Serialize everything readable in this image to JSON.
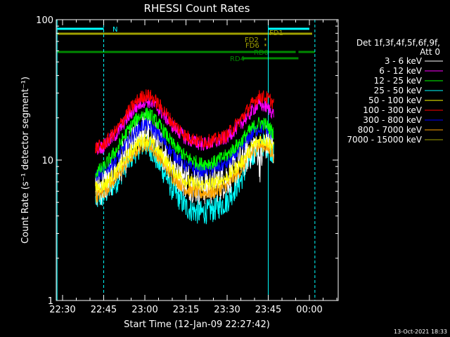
{
  "chart_data": {
    "type": "line",
    "title": "RHESSI Count Rates",
    "xlabel": "Start Time (12-Jan-09 22:27:42)",
    "ylabel": "Count Rate (s⁻¹ detector segment⁻¹)",
    "x_unit": "minutes of day (UT)",
    "xlim": [
      1347.7,
      1450.5
    ],
    "ylim": [
      1,
      100
    ],
    "yscale": "log",
    "x_ticks": [
      {
        "value": 1350,
        "label": "22:30"
      },
      {
        "value": 1365,
        "label": "22:45"
      },
      {
        "value": 1380,
        "label": "23:00"
      },
      {
        "value": 1395,
        "label": "23:15"
      },
      {
        "value": 1410,
        "label": "23:30"
      },
      {
        "value": 1425,
        "label": "23:45"
      },
      {
        "value": 1440,
        "label": "00:00"
      }
    ],
    "y_ticks": [
      {
        "value": 1,
        "label": "1"
      },
      {
        "value": 10,
        "label": "10"
      },
      {
        "value": 100,
        "label": "100"
      }
    ],
    "legend_header": [
      "Det 1f,3f,4f,5f,6f,9f,",
      "Att 0"
    ],
    "legend_position": "right",
    "grid": false,
    "series": [
      {
        "name": "3 - 6 keV",
        "color": "#ffffff",
        "noise": 0.14,
        "points": [
          [
            1362,
            6.2
          ],
          [
            1365,
            6.6
          ],
          [
            1370,
            8.5
          ],
          [
            1375,
            12.5
          ],
          [
            1378,
            15.5
          ],
          [
            1380,
            16.5
          ],
          [
            1382,
            16
          ],
          [
            1385,
            13
          ],
          [
            1390,
            9
          ],
          [
            1395,
            7.2
          ],
          [
            1400,
            6.5
          ],
          [
            1405,
            6.6
          ],
          [
            1410,
            7.5
          ],
          [
            1415,
            9.5
          ],
          [
            1418,
            11.5
          ],
          [
            1420,
            12.8
          ],
          [
            1421,
            12.5
          ],
          [
            1422,
            9.5
          ],
          [
            1424,
            13.5
          ],
          [
            1426,
            13.5
          ],
          [
            1427,
            12
          ]
        ]
      },
      {
        "name": "6 - 12 keV",
        "color": "#ff00ff",
        "noise": 0.05,
        "points": [
          [
            1362,
            12
          ],
          [
            1365,
            12.5
          ],
          [
            1370,
            15.5
          ],
          [
            1375,
            21.5
          ],
          [
            1378,
            25
          ],
          [
            1380,
            26.5
          ],
          [
            1382,
            26
          ],
          [
            1385,
            23
          ],
          [
            1390,
            17.5
          ],
          [
            1395,
            14.2
          ],
          [
            1400,
            13
          ],
          [
            1405,
            13.2
          ],
          [
            1410,
            14.5
          ],
          [
            1415,
            18
          ],
          [
            1418,
            21
          ],
          [
            1420,
            23.5
          ],
          [
            1422,
            25
          ],
          [
            1424,
            24
          ],
          [
            1426,
            22.5
          ],
          [
            1427,
            21
          ]
        ]
      },
      {
        "name": "12 - 25 keV",
        "color": "#00ff00",
        "noise": 0.05,
        "points": [
          [
            1362,
            8.2
          ],
          [
            1365,
            8.8
          ],
          [
            1370,
            12
          ],
          [
            1375,
            17.5
          ],
          [
            1378,
            20.5
          ],
          [
            1380,
            21.5
          ],
          [
            1382,
            21
          ],
          [
            1385,
            18
          ],
          [
            1390,
            13
          ],
          [
            1395,
            10.5
          ],
          [
            1400,
            9.4
          ],
          [
            1405,
            9.6
          ],
          [
            1410,
            10.8
          ],
          [
            1415,
            13.5
          ],
          [
            1418,
            16
          ],
          [
            1420,
            17.5
          ],
          [
            1422,
            18.5
          ],
          [
            1424,
            18
          ],
          [
            1426,
            16.5
          ],
          [
            1427,
            15.5
          ]
        ]
      },
      {
        "name": "25 - 50 keV",
        "color": "#00ffff",
        "noise": 0.09,
        "points": [
          [
            1362,
            5.2
          ],
          [
            1365,
            5.6
          ],
          [
            1370,
            7.2
          ],
          [
            1375,
            10.5
          ],
          [
            1378,
            12.5
          ],
          [
            1380,
            13
          ],
          [
            1382,
            12.2
          ],
          [
            1385,
            9.5
          ],
          [
            1390,
            6.2
          ],
          [
            1395,
            4.6
          ],
          [
            1400,
            4.2
          ],
          [
            1405,
            4.4
          ],
          [
            1410,
            5.1
          ],
          [
            1415,
            7.2
          ],
          [
            1418,
            9.6
          ],
          [
            1420,
            11.5
          ],
          [
            1422,
            12.8
          ],
          [
            1424,
            13
          ],
          [
            1426,
            12
          ],
          [
            1427,
            11
          ]
        ]
      },
      {
        "name": "50 - 100 keV",
        "color": "#ffff00",
        "noise": 0.05,
        "points": [
          [
            1362,
            6.3
          ],
          [
            1365,
            6.6
          ],
          [
            1370,
            8.4
          ],
          [
            1375,
            11.5
          ],
          [
            1378,
            13.5
          ],
          [
            1380,
            14
          ],
          [
            1382,
            13.5
          ],
          [
            1385,
            11.5
          ],
          [
            1390,
            8.5
          ],
          [
            1395,
            7.1
          ],
          [
            1400,
            6.6
          ],
          [
            1405,
            6.8
          ],
          [
            1410,
            7.5
          ],
          [
            1415,
            9.5
          ],
          [
            1418,
            11.5
          ],
          [
            1420,
            13
          ],
          [
            1422,
            14
          ],
          [
            1424,
            13.8
          ],
          [
            1426,
            13
          ],
          [
            1427,
            12
          ]
        ]
      },
      {
        "name": "100 - 300 keV",
        "color": "#ff0000",
        "noise": 0.05,
        "points": [
          [
            1362,
            12.2
          ],
          [
            1365,
            12.8
          ],
          [
            1370,
            16.5
          ],
          [
            1375,
            23.5
          ],
          [
            1378,
            27.5
          ],
          [
            1380,
            29
          ],
          [
            1382,
            28.5
          ],
          [
            1385,
            25
          ],
          [
            1390,
            18.5
          ],
          [
            1395,
            14.8
          ],
          [
            1400,
            13.5
          ],
          [
            1405,
            13.8
          ],
          [
            1410,
            15
          ],
          [
            1415,
            19.5
          ],
          [
            1418,
            23.5
          ],
          [
            1420,
            26.5
          ],
          [
            1422,
            28.5
          ],
          [
            1424,
            28
          ],
          [
            1426,
            26.5
          ],
          [
            1427,
            25
          ]
        ]
      },
      {
        "name": "300 - 800 keV",
        "color": "#0000ff",
        "noise": 0.05,
        "points": [
          [
            1362,
            7.8
          ],
          [
            1365,
            8.2
          ],
          [
            1370,
            10.2
          ],
          [
            1375,
            14.5
          ],
          [
            1378,
            17
          ],
          [
            1380,
            18
          ],
          [
            1382,
            17.5
          ],
          [
            1385,
            15
          ],
          [
            1390,
            11.2
          ],
          [
            1395,
            9.1
          ],
          [
            1400,
            8.4
          ],
          [
            1405,
            8.6
          ],
          [
            1410,
            9.5
          ],
          [
            1415,
            12
          ],
          [
            1418,
            14.5
          ],
          [
            1420,
            16
          ],
          [
            1422,
            17
          ],
          [
            1424,
            16.8
          ],
          [
            1426,
            15.5
          ],
          [
            1427,
            14.5
          ]
        ]
      },
      {
        "name": "800 - 7000 keV",
        "color": "#ffa500",
        "noise": 0.05,
        "points": [
          [
            1362,
            5.5
          ],
          [
            1365,
            5.9
          ],
          [
            1370,
            7.6
          ],
          [
            1375,
            10.5
          ],
          [
            1378,
            12.3
          ],
          [
            1380,
            13
          ],
          [
            1382,
            12.5
          ],
          [
            1385,
            10.5
          ],
          [
            1390,
            7.6
          ],
          [
            1395,
            6.2
          ],
          [
            1400,
            5.8
          ],
          [
            1405,
            5.9
          ],
          [
            1410,
            6.6
          ],
          [
            1415,
            8.5
          ],
          [
            1418,
            10.5
          ],
          [
            1420,
            11.8
          ],
          [
            1422,
            12.8
          ],
          [
            1424,
            12.5
          ],
          [
            1426,
            11.5
          ],
          [
            1427,
            10.8
          ]
        ]
      },
      {
        "name": "7000 - 15000 keV",
        "color": "#a0a000",
        "noise": 0,
        "points": []
      }
    ],
    "flags": [
      {
        "label": "N",
        "color": "#00ffff",
        "segments": [
          [
            1348,
            1365
          ],
          [
            1425,
            1440
          ]
        ]
      },
      {
        "label": "FD1",
        "color": "#a0a000",
        "segments": [
          [
            1348,
            1441
          ]
        ]
      },
      {
        "label": "FD2",
        "color": "#a0a000",
        "segments": [
          [
            1423.7,
            1424.2
          ]
        ]
      },
      {
        "label": "FD6",
        "color": "#a0a000",
        "segments": [
          [
            1423.7,
            1424.2
          ]
        ]
      },
      {
        "label": "RD0",
        "color": "#008800",
        "segments": [
          [
            1348,
            1435
          ],
          [
            1436,
            1442
          ]
        ]
      },
      {
        "label": "RD4",
        "color": "#008800",
        "segments": [
          [
            1415.5,
            1436
          ]
        ]
      }
    ],
    "vlines": [
      {
        "x": 1348,
        "color": "#00ffff",
        "style": "solid"
      },
      {
        "x": 1365,
        "color": "#00ffff",
        "style": "dashed"
      },
      {
        "x": 1425,
        "color": "#00ffff",
        "style": "solid"
      },
      {
        "x": 1442,
        "color": "#00ffff",
        "style": "dashed"
      }
    ]
  },
  "footer": {
    "date": "13-Oct-2021 18:33"
  }
}
